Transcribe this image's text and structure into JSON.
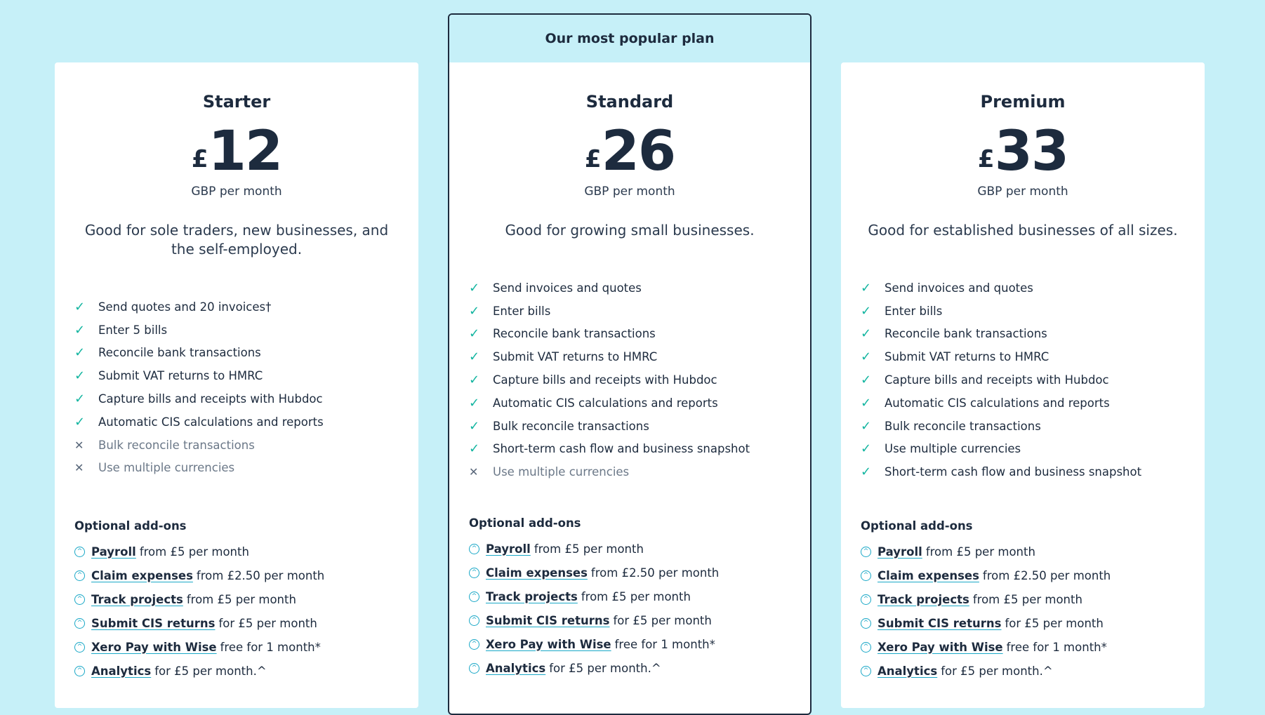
{
  "popular_banner": "Our most popular plan",
  "plans": [
    {
      "name": "Starter",
      "currency": "£",
      "amount": "12",
      "period": "GBP per month",
      "description": "Good for sole traders, new businesses, and the self-employed.",
      "features": [
        {
          "text": "Send quotes and 20 invoices†",
          "included": true
        },
        {
          "text": "Enter 5 bills",
          "included": true
        },
        {
          "text": "Reconcile bank transactions",
          "included": true
        },
        {
          "text": "Submit VAT returns to HMRC",
          "included": true
        },
        {
          "text": "Capture bills and receipts with Hubdoc",
          "included": true
        },
        {
          "text": "Automatic CIS calculations and reports",
          "included": true
        },
        {
          "text": "Bulk reconcile transactions",
          "included": false
        },
        {
          "text": "Use multiple currencies",
          "included": false
        }
      ],
      "addons_title": "Optional add-ons",
      "addons": [
        {
          "link": "Payroll",
          "text": "from £5 per month"
        },
        {
          "link": "Claim expenses",
          "text": "from £2.50 per month"
        },
        {
          "link": "Track projects",
          "text": "from £5 per month"
        },
        {
          "link": "Submit CIS returns",
          "text": "for £5 per month"
        },
        {
          "link": "Xero Pay with Wise",
          "text": "free for 1 month*"
        },
        {
          "link": "Analytics",
          "text": "for £5 per month.^"
        }
      ]
    },
    {
      "name": "Standard",
      "currency": "£",
      "amount": "26",
      "period": "GBP per month",
      "description": "Good for growing small businesses.",
      "features": [
        {
          "text": "Send invoices and quotes",
          "included": true
        },
        {
          "text": "Enter bills",
          "included": true
        },
        {
          "text": "Reconcile bank transactions",
          "included": true
        },
        {
          "text": "Submit VAT returns to HMRC",
          "included": true
        },
        {
          "text": "Capture bills and receipts with Hubdoc",
          "included": true
        },
        {
          "text": "Automatic CIS calculations and reports",
          "included": true
        },
        {
          "text": "Bulk reconcile transactions",
          "included": true
        },
        {
          "text": "Short-term cash flow and business snapshot",
          "included": true
        },
        {
          "text": "Use multiple currencies",
          "included": false
        }
      ],
      "addons_title": "Optional add-ons",
      "addons": [
        {
          "link": "Payroll",
          "text": "from £5 per month"
        },
        {
          "link": "Claim expenses",
          "text": "from £2.50 per month"
        },
        {
          "link": "Track projects",
          "text": "from £5 per month"
        },
        {
          "link": "Submit CIS returns",
          "text": "for £5 per month"
        },
        {
          "link": "Xero Pay with Wise",
          "text": "free for 1 month*"
        },
        {
          "link": "Analytics",
          "text": "for £5 per month.^"
        }
      ]
    },
    {
      "name": "Premium",
      "currency": "£",
      "amount": "33",
      "period": "GBP per month",
      "description": "Good for established businesses of all sizes.",
      "features": [
        {
          "text": "Send invoices and quotes",
          "included": true
        },
        {
          "text": "Enter bills",
          "included": true
        },
        {
          "text": "Reconcile bank transactions",
          "included": true
        },
        {
          "text": "Submit VAT returns to HMRC",
          "included": true
        },
        {
          "text": "Capture bills and receipts with Hubdoc",
          "included": true
        },
        {
          "text": "Automatic CIS calculations and reports",
          "included": true
        },
        {
          "text": "Bulk reconcile transactions",
          "included": true
        },
        {
          "text": "Use multiple currencies",
          "included": true
        },
        {
          "text": "Short-term cash flow and business snapshot",
          "included": true
        }
      ],
      "addons_title": "Optional add-ons",
      "addons": [
        {
          "link": "Payroll",
          "text": "from £5 per month"
        },
        {
          "link": "Claim expenses",
          "text": "from £2.50 per month"
        },
        {
          "link": "Track projects",
          "text": "from £5 per month"
        },
        {
          "link": "Submit CIS returns",
          "text": "for £5 per month"
        },
        {
          "link": "Xero Pay with Wise",
          "text": "free for 1 month*"
        },
        {
          "link": "Analytics",
          "text": "for £5 per month.^"
        }
      ]
    }
  ],
  "colors": {
    "page_bg": "#c6f0f8",
    "text": "#1d2b3e",
    "check": "#13b5a0",
    "link_accent": "#1aa8c7"
  }
}
